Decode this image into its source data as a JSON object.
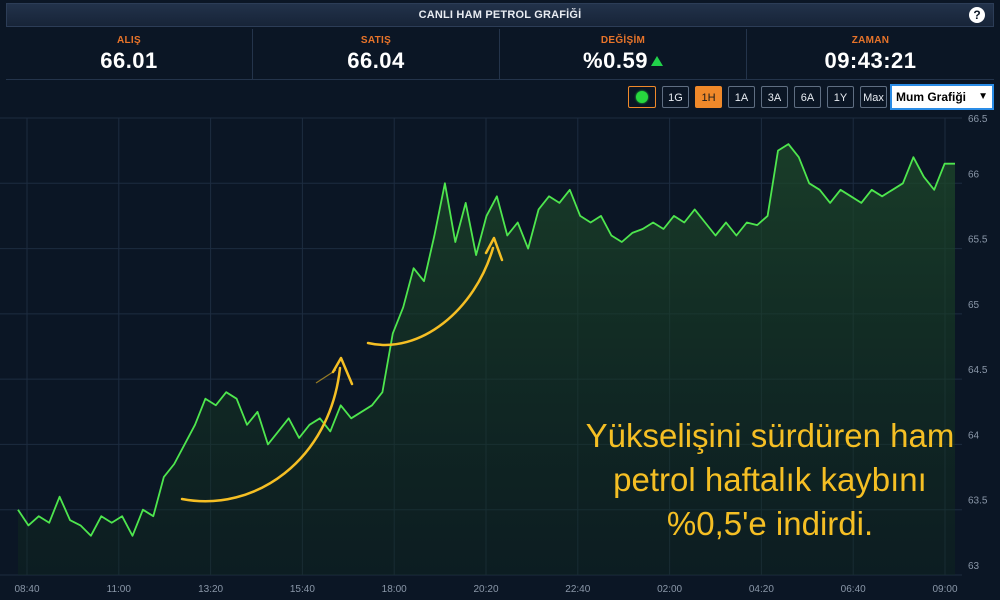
{
  "header": {
    "title": "CANLI HAM PETROL GRAFİĞİ",
    "help_icon": "?"
  },
  "stats": [
    {
      "label": "ALIŞ",
      "value": "66.01"
    },
    {
      "label": "SATIŞ",
      "value": "66.04"
    },
    {
      "label": "DEĞİŞİM",
      "value": "%0.59",
      "trend": "up"
    },
    {
      "label": "ZAMAN",
      "value": "09:43:21"
    }
  ],
  "controls": {
    "live_icon": "green-dot-icon",
    "ranges": [
      "1G",
      "1H",
      "1A",
      "3A",
      "6A",
      "1Y",
      "Max"
    ],
    "active_range": "1H",
    "chart_type": "Mum Grafiği"
  },
  "overlay_text": [
    "Yükselişini sürdüren ham",
    "petrol haftalık kaybını",
    "%0,5'e indirdi."
  ],
  "colors": {
    "line": "#4ee64e",
    "accent": "#f0892a",
    "annotation": "#f5bf24",
    "background": "#0b1625"
  },
  "chart_data": {
    "type": "area",
    "x_ticks": [
      "08:40",
      "11:00",
      "13:20",
      "15:40",
      "18:00",
      "20:20",
      "22:40",
      "02:00",
      "04:20",
      "06:40",
      "09:00"
    ],
    "y_ticks": [
      "63",
      "63.5",
      "64",
      "64.5",
      "65",
      "65.5",
      "66",
      "66.5"
    ],
    "ylim": [
      63,
      66.5
    ],
    "series": [
      {
        "values": [
          63.5,
          63.38,
          63.45,
          63.4,
          63.6,
          63.42,
          63.38,
          63.3,
          63.45,
          63.4,
          63.45,
          63.3,
          63.5,
          63.45,
          63.75,
          63.85,
          64.0,
          64.15,
          64.35,
          64.3,
          64.4,
          64.35,
          64.15,
          64.25,
          64.0,
          64.1,
          64.2,
          64.05,
          64.15,
          64.2,
          64.1,
          64.3,
          64.2,
          64.25,
          64.3,
          64.4,
          64.85,
          65.05,
          65.35,
          65.25,
          65.6,
          66.0,
          65.55,
          65.85,
          65.45,
          65.75,
          65.9,
          65.6,
          65.7,
          65.5,
          65.8,
          65.9,
          65.85,
          65.95,
          65.75,
          65.7,
          65.75,
          65.6,
          65.55,
          65.62,
          65.65,
          65.7,
          65.65,
          65.75,
          65.7,
          65.8,
          65.7,
          65.6,
          65.7,
          65.6,
          65.7,
          65.68,
          65.75,
          66.25,
          66.3,
          66.2,
          66.0,
          65.95,
          65.85,
          65.95,
          65.9,
          65.85,
          65.95,
          65.9,
          65.95,
          66.0,
          66.2,
          66.05,
          65.95,
          66.15,
          66.15
        ]
      }
    ]
  }
}
